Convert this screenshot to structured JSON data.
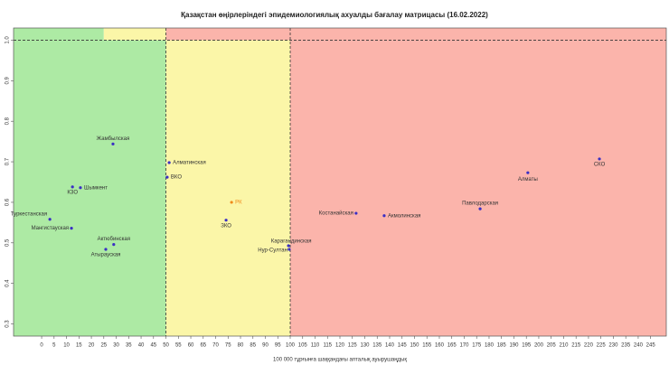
{
  "chart_data": {
    "type": "scatter",
    "title": "Қазақстан өңірлеріндегі эпидемиологиялық ахуалды бағалау матрицасы  (16.02.2022)",
    "x_label": "100 000 тұрғынға шаққандағы апталық ауырушаңдық",
    "xlim": [
      -11.3,
      251.3
    ],
    "ylim": [
      0.27,
      1.03
    ],
    "xticks": [
      0,
      5,
      10,
      15,
      20,
      25,
      30,
      35,
      40,
      45,
      50,
      55,
      60,
      65,
      70,
      75,
      80,
      85,
      90,
      95,
      100,
      105,
      110,
      115,
      120,
      125,
      130,
      135,
      140,
      145,
      150,
      155,
      160,
      165,
      170,
      175,
      180,
      185,
      190,
      195,
      200,
      205,
      210,
      215,
      220,
      225,
      230,
      235,
      240,
      245
    ],
    "yticks": [
      0.3,
      0.4,
      0.5,
      0.6,
      0.7,
      0.8,
      0.9,
      {
        "value": 1,
        "label": "1.0"
      }
    ],
    "zones": [
      {
        "x0": -11.3,
        "x1": 50,
        "y0": 0.27,
        "y1": 1,
        "color": "#adeaa4"
      },
      {
        "x0": 50,
        "x1": 100,
        "y0": 0.27,
        "y1": 1,
        "color": "#fbf6a8"
      },
      {
        "x0": 100,
        "x1": 251.3,
        "y0": 0.27,
        "y1": 1,
        "color": "#fbb4ab"
      },
      {
        "x0": -11.3,
        "x1": 25,
        "y0": 1,
        "y1": 1.03,
        "color": "#adeaa4"
      },
      {
        "x0": 25,
        "x1": 50,
        "y0": 1,
        "y1": 1.03,
        "color": "#fbf6a8"
      },
      {
        "x0": 50,
        "x1": 251.3,
        "y0": 1,
        "y1": 1.03,
        "color": "#fbb4ab"
      }
    ],
    "thresholds_x": [
      50,
      100
    ],
    "threshold_y": 1,
    "points": {
      "labels": [
        "Жамбылская",
        "Шымкент",
        "КЗО",
        "Туркестанская",
        "Мангистауская",
        "Актюбинская",
        "Атырауская",
        "Алматинская",
        "ВКО",
        "РК",
        "ЗКО",
        "Карагандинская",
        "Нур-Султан",
        "Костанайская",
        "Акмолинская",
        "Павлодарская",
        "Алматы",
        "СКО"
      ],
      "x": [
        28.7,
        15.6,
        12.4,
        3.3,
        12,
        29,
        25.8,
        51.3,
        50.5,
        76.4,
        74.2,
        99.3,
        99.6,
        126.5,
        137.8,
        176.4,
        195.6,
        224.4
      ],
      "y": [
        0.744,
        0.636,
        0.638,
        0.558,
        0.536,
        0.496,
        0.484,
        0.698,
        0.662,
        0.6,
        0.556,
        0.493,
        0.484,
        0.573,
        0.567,
        0.584,
        0.673,
        0.707
      ],
      "colors": [
        "#3a2fc4",
        "#3a2fc4",
        "#3a2fc4",
        "#3a2fc4",
        "#3a2fc4",
        "#3a2fc4",
        "#3a2fc4",
        "#3a2fc4",
        "#3a2fc4",
        "#f08a1c",
        "#3a2fc4",
        "#3a2fc4",
        "#3a2fc4",
        "#3a2fc4",
        "#3a2fc4",
        "#3a2fc4",
        "#3a2fc4",
        "#3a2fc4"
      ]
    }
  }
}
